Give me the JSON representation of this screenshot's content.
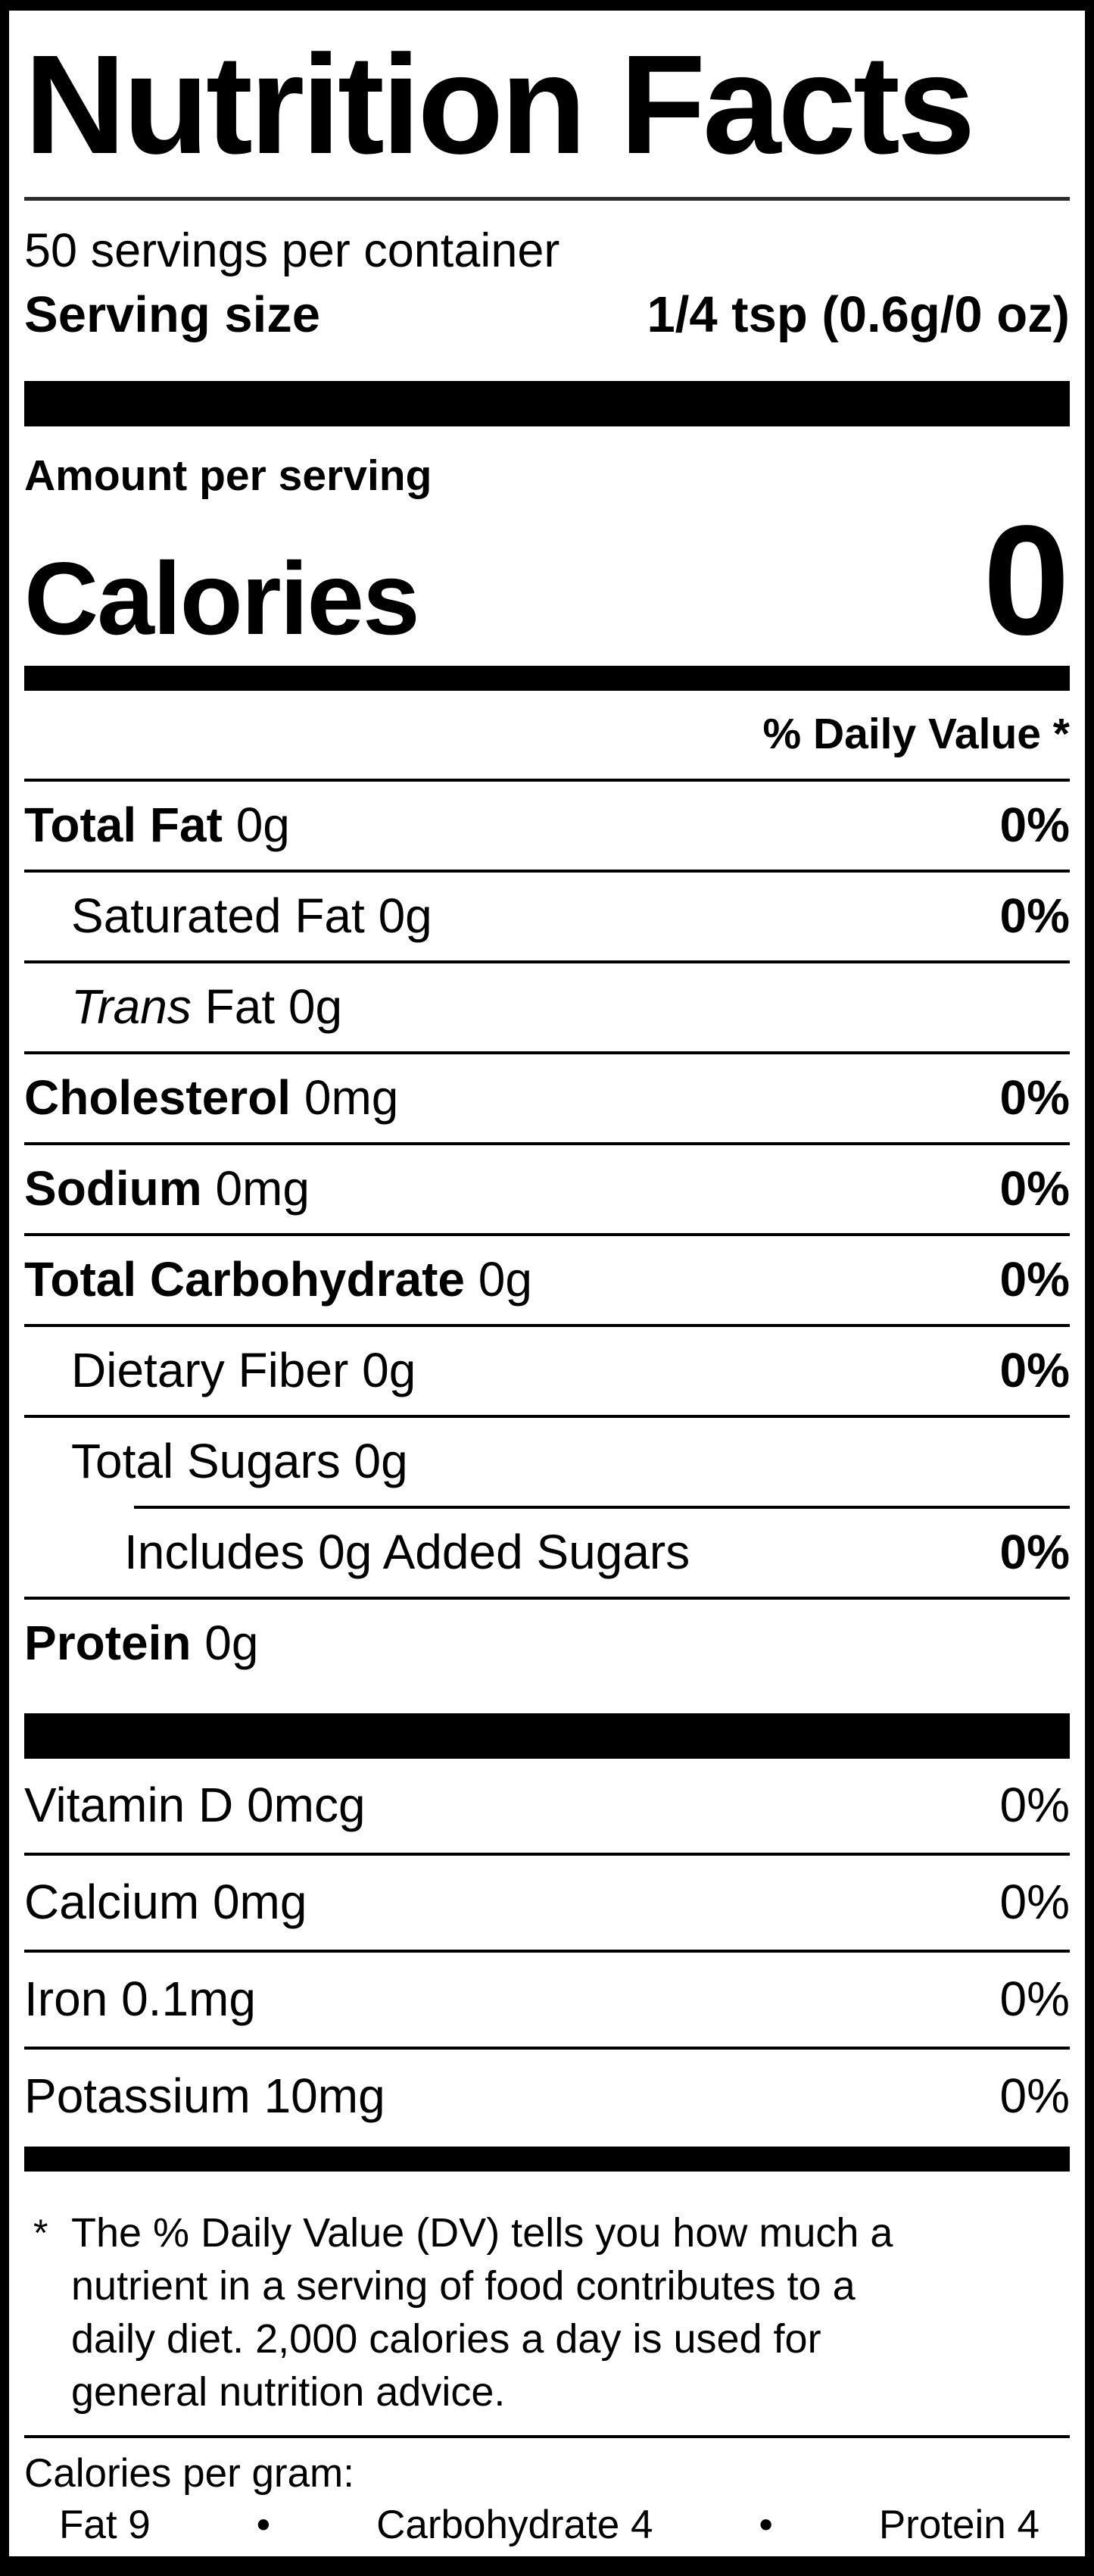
{
  "title": "Nutrition Facts",
  "servings_per_container": "50 servings per container",
  "serving_size": {
    "label": "Serving size",
    "value": "1/4 tsp (0.6g/0 oz)"
  },
  "amount_per_serving": "Amount per serving",
  "calories": {
    "label": "Calories",
    "value": "0"
  },
  "daily_value_header": "% Daily Value *",
  "nutrients": [
    {
      "bold": "Total Fat",
      "rest": " 0g",
      "dv": "0%"
    },
    {
      "rest": "Saturated Fat 0g",
      "dv": "0%"
    },
    {
      "italic": "Trans",
      "rest": " Fat 0g",
      "dv": ""
    },
    {
      "bold": "Cholesterol",
      "rest": " 0mg",
      "dv": "0%"
    },
    {
      "bold": "Sodium",
      "rest": " 0mg",
      "dv": "0%"
    },
    {
      "bold": "Total Carbohydrate",
      "rest": " 0g",
      "dv": "0%"
    },
    {
      "rest": "Dietary Fiber 0g",
      "dv": "0%"
    },
    {
      "rest": "Total Sugars 0g",
      "dv": ""
    },
    {
      "rest": "Includes 0g Added Sugars",
      "dv": "0%"
    },
    {
      "bold": "Protein",
      "rest": " 0g",
      "dv": ""
    }
  ],
  "vitamins": [
    {
      "name": "Vitamin D 0mcg",
      "dv": "0%"
    },
    {
      "name": "Calcium 0mg",
      "dv": "0%"
    },
    {
      "name": "Iron 0.1mg",
      "dv": "0%"
    },
    {
      "name": "Potassium 10mg",
      "dv": "0%"
    }
  ],
  "footnote": {
    "marker": "*",
    "lines": [
      "The % Daily Value (DV) tells you how much a",
      "nutrient in a serving of food contributes to a",
      "daily diet. 2,000 calories a day is used for",
      "general nutrition advice."
    ]
  },
  "calories_per_gram": {
    "label": "Calories per gram:",
    "bullet": "•",
    "items": [
      "Fat 9",
      "Carbohydrate 4",
      "Protein 4"
    ]
  },
  "colors": {
    "ink": "#000000",
    "paper": "#ffffff"
  }
}
